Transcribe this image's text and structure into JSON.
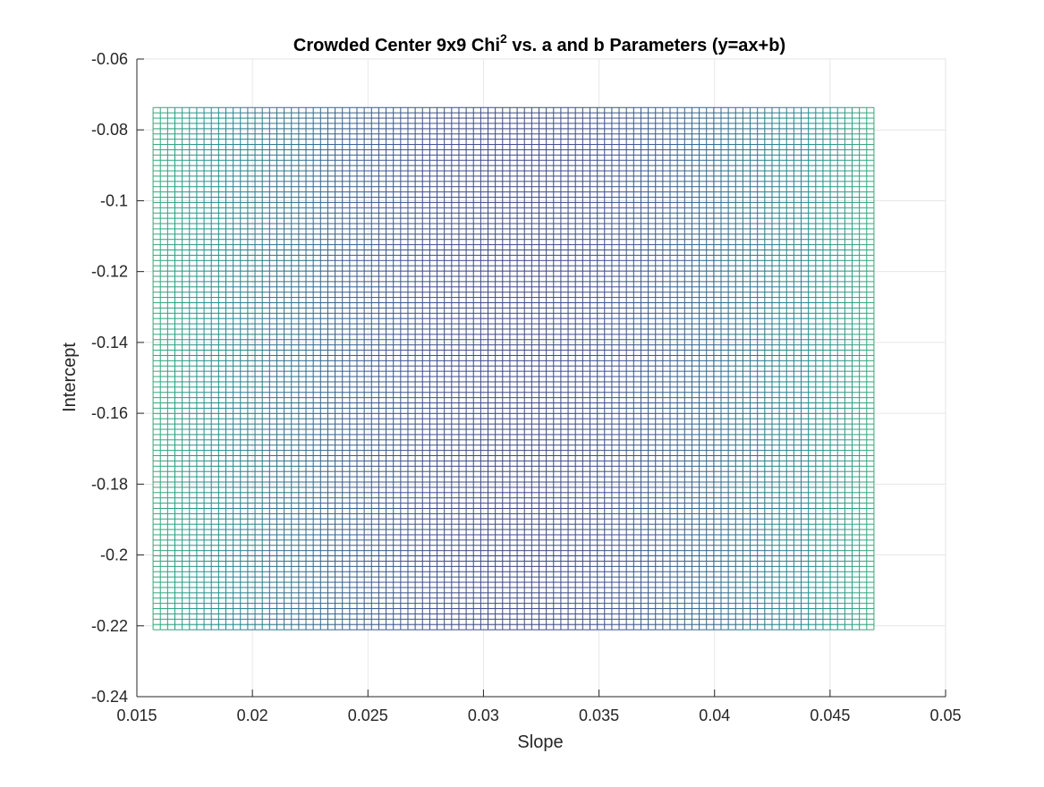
{
  "chart_data": {
    "type": "heatmap",
    "render_style": "mesh",
    "title": {
      "prefix": "Crowded Center 9x9 Chi",
      "superscript": "2",
      "suffix": " vs. a and b Parameters (y=ax+b)"
    },
    "xlabel": "Slope",
    "ylabel": "Intercept",
    "xlim": [
      0.015,
      0.05
    ],
    "ylim": [
      -0.24,
      -0.06
    ],
    "xticks": [
      0.015,
      0.02,
      0.025,
      0.03,
      0.035,
      0.04,
      0.045,
      0.05
    ],
    "xtick_labels": [
      "0.015",
      "0.02",
      "0.025",
      "0.03",
      "0.035",
      "0.04",
      "0.045",
      "0.05"
    ],
    "yticks": [
      -0.24,
      -0.22,
      -0.2,
      -0.18,
      -0.16,
      -0.14,
      -0.12,
      -0.1,
      -0.08,
      -0.06
    ],
    "ytick_labels": [
      "-0.24",
      "-0.22",
      "-0.2",
      "-0.18",
      "-0.16",
      "-0.14",
      "-0.12",
      "-0.1",
      "-0.08",
      "-0.06"
    ],
    "grid": true,
    "view": "top-down",
    "mesh": {
      "a_range": [
        0.0157,
        0.0469
      ],
      "b_range": [
        -0.2211,
        -0.0737
      ],
      "a_count": 100,
      "b_count": 100,
      "a_min_at": 0.0313
    },
    "colormap": [
      "#440154",
      "#3b528b",
      "#21918c",
      "#5ec962",
      "#fde725"
    ],
    "grid_color": "#e6e6e6",
    "axis_color": "#262626"
  }
}
